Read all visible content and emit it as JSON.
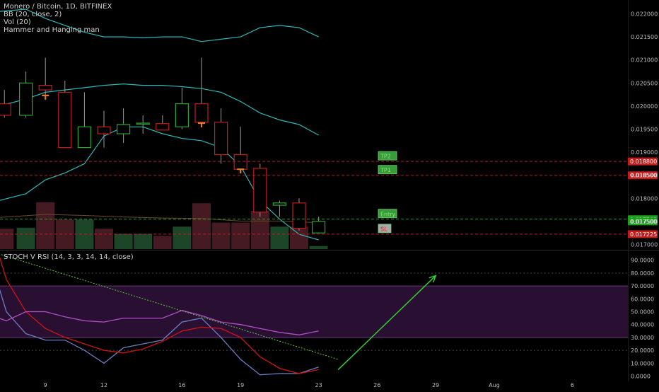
{
  "colors": {
    "background": "#000000",
    "up": "#2fa52f",
    "down": "#c41b1b",
    "bb": "#2fb6b6",
    "axis_text": "#bdbdbd",
    "target_box": "#3a9b3a",
    "stop_box": "#a8a8a8",
    "stoch_k": "#6b7fc2",
    "stoch_d": "#d01414",
    "rsi": "#b04fc6",
    "band": "#30123b",
    "trend": "#5bd13a",
    "arrow": "#2ed12e"
  },
  "legend_lines": [
    "Monero / Bitcoin, 1D, BITFINEX",
    "BB (20, close, 2)",
    "Vol (20)",
    "Hammer and Hanging man"
  ],
  "indicator_title": "STOCH V RSI (14, 3, 3, 14, 14, close)",
  "chart_data": [
    {
      "type": "candlestick",
      "title": "Monero / Bitcoin, 1D, BITFINEX",
      "ylim": [
        0.0169,
        0.0223
      ],
      "ytick_labels": [
        "0.022000",
        "0.021500",
        "0.021000",
        "0.020500",
        "0.020000",
        "0.019500",
        "0.019000",
        "0.018500",
        "0.018000",
        "0.017500",
        "0.017000"
      ],
      "ytick_values": [
        0.022,
        0.0215,
        0.021,
        0.0205,
        0.02,
        0.0195,
        0.019,
        0.0185,
        0.018,
        0.0175,
        0.017
      ],
      "xtick_labels": [
        "9",
        "12",
        "16",
        "19",
        "23",
        "26",
        "29",
        "Aug",
        "6"
      ],
      "xtick_days": [
        2,
        5,
        9,
        12,
        16,
        19,
        22,
        25,
        29
      ],
      "candles": [
        {
          "day": -0.1,
          "open": 0.02005,
          "high": 0.02035,
          "low": 0.01975,
          "close": 0.0198
        },
        {
          "day": 1,
          "open": 0.0198,
          "high": 0.02075,
          "low": 0.01975,
          "close": 0.0205
        },
        {
          "day": 2,
          "open": 0.02045,
          "high": 0.02105,
          "low": 0.0202,
          "close": 0.02035
        },
        {
          "day": 3,
          "open": 0.0203,
          "high": 0.02055,
          "low": 0.0191,
          "close": 0.0191
        },
        {
          "day": 4,
          "open": 0.0191,
          "high": 0.0203,
          "low": 0.0191,
          "close": 0.01955
        },
        {
          "day": 5,
          "open": 0.01955,
          "high": 0.0199,
          "low": 0.0191,
          "close": 0.0194
        },
        {
          "day": 6,
          "open": 0.0194,
          "high": 0.01995,
          "low": 0.0192,
          "close": 0.0196
        },
        {
          "day": 7,
          "open": 0.01962,
          "high": 0.0198,
          "low": 0.0194,
          "close": 0.01963
        },
        {
          "day": 8,
          "open": 0.01962,
          "high": 0.0198,
          "low": 0.0195,
          "close": 0.01948
        },
        {
          "day": 9,
          "open": 0.01955,
          "high": 0.0204,
          "low": 0.0195,
          "close": 0.02005
        },
        {
          "day": 10,
          "open": 0.02005,
          "high": 0.02105,
          "low": 0.0196,
          "close": 0.01965
        },
        {
          "day": 11,
          "open": 0.01965,
          "high": 0.01995,
          "low": 0.01875,
          "close": 0.01895
        },
        {
          "day": 12,
          "open": 0.01895,
          "high": 0.01955,
          "low": 0.01855,
          "close": 0.01863
        },
        {
          "day": 13,
          "open": 0.01865,
          "high": 0.01875,
          "low": 0.0176,
          "close": 0.0177
        },
        {
          "day": 14,
          "open": 0.01785,
          "high": 0.01795,
          "low": 0.0176,
          "close": 0.0179
        },
        {
          "day": 15,
          "open": 0.0179,
          "high": 0.018,
          "low": 0.0173,
          "close": 0.01735
        },
        {
          "day": 16,
          "open": 0.01725,
          "high": 0.0176,
          "low": 0.01725,
          "close": 0.0175
        }
      ],
      "hammer_markers": [
        {
          "day": 2,
          "price": 0.0202
        },
        {
          "day": 10,
          "price": 0.0196
        },
        {
          "day": 12,
          "price": 0.0186
        }
      ],
      "bb_upper": [
        [
          -0.4,
          0.02205
        ],
        [
          1,
          0.0221
        ],
        [
          2,
          0.0219
        ],
        [
          3,
          0.02175
        ],
        [
          4,
          0.0216
        ],
        [
          5,
          0.0215
        ],
        [
          6,
          0.0215
        ],
        [
          7,
          0.02148
        ],
        [
          8,
          0.0215
        ],
        [
          9,
          0.0215
        ],
        [
          10,
          0.0214
        ],
        [
          11,
          0.02145
        ],
        [
          12,
          0.0215
        ],
        [
          13,
          0.0217
        ],
        [
          14,
          0.02175
        ],
        [
          15,
          0.0217
        ],
        [
          16,
          0.0215
        ]
      ],
      "bb_basis": [
        [
          -0.4,
          0.02
        ],
        [
          1,
          0.02015
        ],
        [
          2,
          0.0203
        ],
        [
          3,
          0.02035
        ],
        [
          4,
          0.0204
        ],
        [
          5,
          0.02045
        ],
        [
          6,
          0.02048
        ],
        [
          7,
          0.02045
        ],
        [
          8,
          0.02045
        ],
        [
          9,
          0.02042
        ],
        [
          10,
          0.02038
        ],
        [
          11,
          0.0203
        ],
        [
          12,
          0.0201
        ],
        [
          13,
          0.01985
        ],
        [
          14,
          0.0197
        ],
        [
          15,
          0.0196
        ],
        [
          16,
          0.01937
        ]
      ],
      "bb_lower": [
        [
          -0.4,
          0.01795
        ],
        [
          1,
          0.0181
        ],
        [
          2,
          0.0184
        ],
        [
          3,
          0.01855
        ],
        [
          4,
          0.01875
        ],
        [
          5,
          0.01935
        ],
        [
          6,
          0.01955
        ],
        [
          7,
          0.01955
        ],
        [
          8,
          0.0194
        ],
        [
          9,
          0.0193
        ],
        [
          10,
          0.01925
        ],
        [
          11,
          0.0191
        ],
        [
          12,
          0.0187
        ],
        [
          13,
          0.01795
        ],
        [
          14,
          0.01755
        ],
        [
          15,
          0.01722
        ],
        [
          16,
          0.0171
        ]
      ],
      "volume_bars": [
        {
          "day": -0.1,
          "v": 0.4,
          "up": false
        },
        {
          "day": 1,
          "v": 0.42,
          "up": true
        },
        {
          "day": 2,
          "v": 0.92,
          "up": false
        },
        {
          "day": 3,
          "v": 0.58,
          "up": false
        },
        {
          "day": 4,
          "v": 0.58,
          "up": true
        },
        {
          "day": 5,
          "v": 0.4,
          "up": false
        },
        {
          "day": 6,
          "v": 0.3,
          "up": true
        },
        {
          "day": 7,
          "v": 0.3,
          "up": true
        },
        {
          "day": 8,
          "v": 0.26,
          "up": false
        },
        {
          "day": 9,
          "v": 0.44,
          "up": true
        },
        {
          "day": 10,
          "v": 0.9,
          "up": false
        },
        {
          "day": 11,
          "v": 0.52,
          "up": false
        },
        {
          "day": 12,
          "v": 0.52,
          "up": false
        },
        {
          "day": 13,
          "v": 0.75,
          "up": false
        },
        {
          "day": 14,
          "v": 0.44,
          "up": true
        },
        {
          "day": 15,
          "v": 0.44,
          "up": false
        },
        {
          "day": 16,
          "v": 0.06,
          "up": true
        }
      ],
      "volume_ma": [
        [
          -0.4,
          0.62
        ],
        [
          2,
          0.68
        ],
        [
          4,
          0.66
        ],
        [
          6,
          0.63
        ],
        [
          8,
          0.61
        ],
        [
          10,
          0.6
        ],
        [
          12,
          0.55
        ],
        [
          14,
          0.55
        ],
        [
          16,
          0.52
        ]
      ],
      "levels": [
        {
          "price": 0.0188,
          "label": "0.018800",
          "style": "red",
          "tag": "TP2"
        },
        {
          "price": 0.0185,
          "label": "0.018500",
          "style": "red",
          "tag": "TP1"
        },
        {
          "price": 0.017548,
          "label": "0.017548",
          "style": "green",
          "tag": "Entry"
        },
        {
          "price": 0.0175,
          "label": "0.017500",
          "style": "none"
        },
        {
          "price": 0.017225,
          "label": "0.017225",
          "style": "red",
          "tag": "SL"
        }
      ]
    },
    {
      "type": "line",
      "title": "STOCH V RSI (14, 3, 3, 14, 14, close)",
      "ylim": [
        -3,
        97
      ],
      "ytick_labels": [
        "90.0000",
        "80.0000",
        "70.0000",
        "60.0000",
        "50.0000",
        "40.0000",
        "30.0000",
        "20.0000",
        "10.0000",
        "0.0000"
      ],
      "ytick_values": [
        90,
        80,
        70,
        60,
        50,
        40,
        30,
        20,
        10,
        0
      ],
      "band": [
        30,
        70
      ],
      "dotted_levels": [
        80,
        20
      ],
      "series": [
        {
          "key": "k",
          "values": [
            [
              -0.4,
              70
            ],
            [
              0,
              50
            ],
            [
              1,
              33
            ],
            [
              2,
              28
            ],
            [
              3,
              28
            ],
            [
              4,
              20
            ],
            [
              5,
              10
            ],
            [
              6,
              22
            ],
            [
              7,
              25
            ],
            [
              8,
              28
            ],
            [
              9,
              42
            ],
            [
              10,
              45
            ],
            [
              11,
              30
            ],
            [
              12,
              13
            ],
            [
              13,
              1
            ],
            [
              14,
              2
            ],
            [
              15,
              2
            ],
            [
              16,
              7
            ]
          ]
        },
        {
          "key": "d",
          "values": [
            [
              -0.4,
              95
            ],
            [
              0,
              75
            ],
            [
              1,
              50
            ],
            [
              2,
              37
            ],
            [
              3,
              30
            ],
            [
              4,
              25
            ],
            [
              5,
              20
            ],
            [
              6,
              18
            ],
            [
              7,
              21
            ],
            [
              8,
              27
            ],
            [
              9,
              35
            ],
            [
              10,
              38
            ],
            [
              11,
              37
            ],
            [
              12,
              30
            ],
            [
              13,
              15
            ],
            [
              14,
              6
            ],
            [
              15,
              2
            ],
            [
              16,
              5
            ]
          ]
        },
        {
          "key": "rsi",
          "values": [
            [
              -0.4,
              45
            ],
            [
              0,
              43
            ],
            [
              1,
              50
            ],
            [
              2,
              50
            ],
            [
              3,
              46
            ],
            [
              4,
              43
            ],
            [
              5,
              42
            ],
            [
              6,
              45
            ],
            [
              7,
              45
            ],
            [
              8,
              45
            ],
            [
              9,
              51
            ],
            [
              10,
              47
            ],
            [
              11,
              42
            ],
            [
              12,
              40
            ],
            [
              13,
              37
            ],
            [
              14,
              34
            ],
            [
              15,
              32
            ],
            [
              16,
              35
            ]
          ]
        }
      ],
      "trend_line": [
        [
          -0.4,
          95
        ],
        [
          17,
          13
        ]
      ],
      "arrow": [
        [
          17,
          5
        ],
        [
          22,
          78
        ]
      ]
    }
  ]
}
